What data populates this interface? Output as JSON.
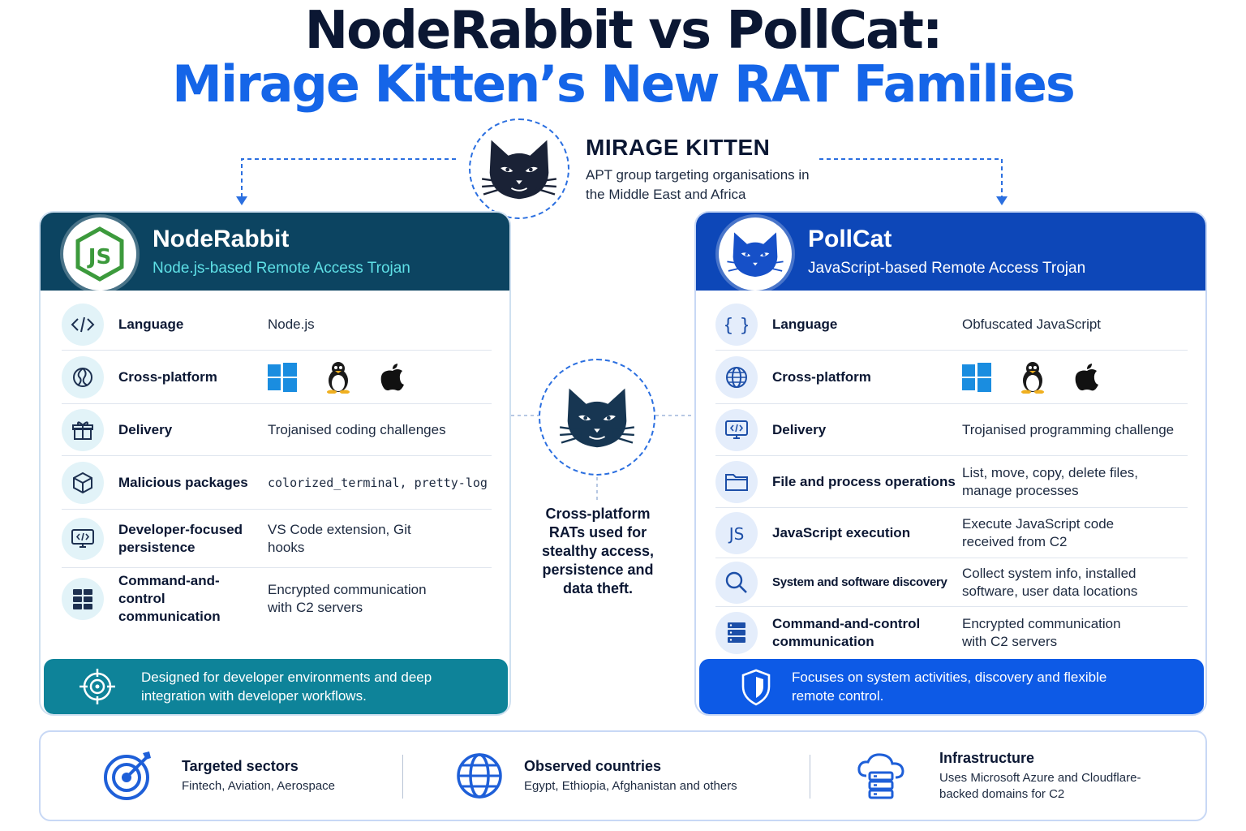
{
  "title": {
    "line1": "NodeRabbit vs PollCat:",
    "line2": "Mirage Kitten’s New RAT Families"
  },
  "group": {
    "name": "MIRAGE KITTEN",
    "description": "APT group targeting organisations in the Middle East and Africa"
  },
  "noderabbit": {
    "name": "NodeRabbit",
    "subtitle": "Node.js-based Remote Access Trojan",
    "logo_icon": "nodejs-logo-icon",
    "rows": [
      {
        "icon": "code-icon",
        "label": "Language",
        "value": "Node.js"
      },
      {
        "icon": "globe-half-icon",
        "label": "Cross-platform",
        "value": ""
      },
      {
        "icon": "gift-icon",
        "label": "Delivery",
        "value": "Trojanised coding challenges"
      },
      {
        "icon": "package-icon",
        "label": "Malicious packages",
        "value": "colorized_terminal, pretty-log"
      },
      {
        "icon": "code-monitor-icon",
        "label": "Developer-focused persistence",
        "value": "VS Code extension, Git hooks"
      },
      {
        "icon": "server-grid-icon",
        "label": "Command-and-control communication",
        "value": "Encrypted communication with C2 servers"
      }
    ],
    "footer": "Designed for developer environments and deep integration with developer workflows."
  },
  "pollcat": {
    "name": "PollCat",
    "subtitle": "JavaScript-based Remote Access Trojan",
    "logo_icon": "cat-logo-icon",
    "rows": [
      {
        "icon": "braces-icon",
        "label": "Language",
        "value": "Obfuscated JavaScript"
      },
      {
        "icon": "globe-icon",
        "label": "Cross-platform",
        "value": ""
      },
      {
        "icon": "code-monitor-icon",
        "label": "Delivery",
        "value": "Trojanised programming challenge"
      },
      {
        "icon": "folder-icon",
        "label": "File and process operations",
        "value": "List, move, copy, delete files, manage processes"
      },
      {
        "icon": "js-icon",
        "label": "JavaScript execution",
        "value": "Execute JavaScript code received from C2"
      },
      {
        "icon": "search-icon",
        "label": "System and software discovery",
        "value": "Collect system info, installed software, user data locations"
      },
      {
        "icon": "server-icon",
        "label": "Command-and-control communication",
        "value": "Encrypted communication with C2 servers"
      }
    ],
    "footer": "Focuses on system activities, discovery and flexible remote control."
  },
  "center": {
    "text": "Cross-platform RATs used for stealthy access, persistence and data theft."
  },
  "bottom": [
    {
      "icon": "target-icon",
      "title": "Targeted sectors",
      "text": "Fintech, Aviation, Aerospace"
    },
    {
      "icon": "globe-icon",
      "title": "Observed countries",
      "text": "Egypt, Ethiopia, Afghanistan and others"
    },
    {
      "icon": "cloud-server-icon",
      "title": "Infrastructure",
      "text": "Uses Microsoft Azure and Cloudflare-backed domains for C2"
    }
  ],
  "colors": {
    "title_dark": "#0b1733",
    "title_blue": "#1565e8",
    "noderabbit_header": "#0c4461",
    "noderabbit_footer": "#0e8399",
    "pollcat_header": "#0d47b8",
    "pollcat_footer": "#0d5ae6"
  }
}
